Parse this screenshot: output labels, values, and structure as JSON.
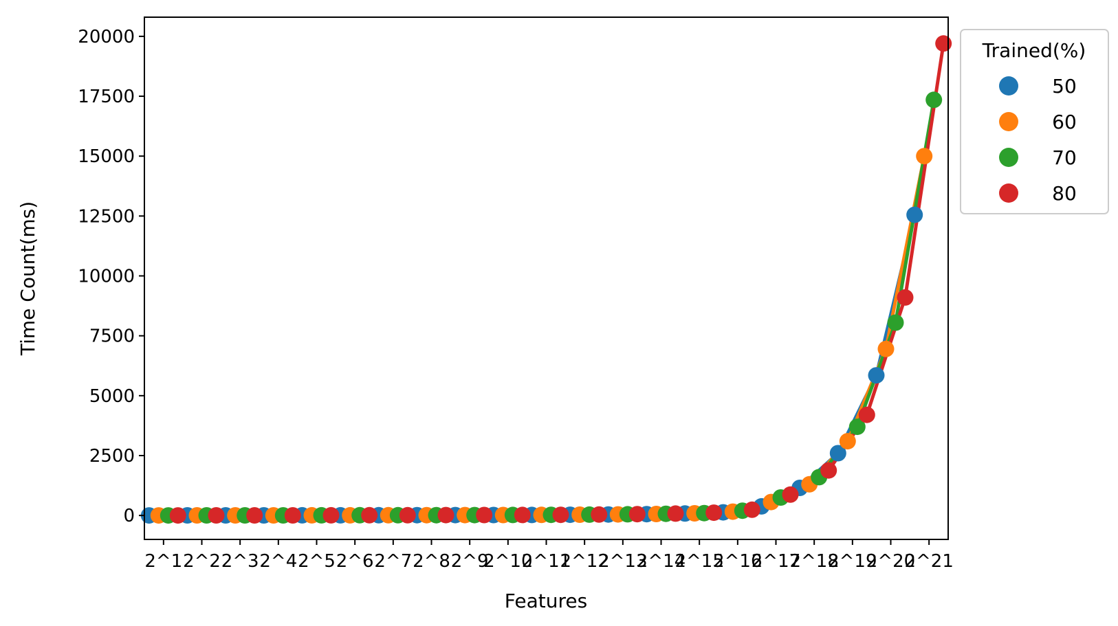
{
  "chart_data": {
    "type": "line",
    "xlabel": "Features",
    "ylabel": "Time Count(ms)",
    "categories": [
      "2^1",
      "2^2",
      "2^3",
      "2^4",
      "2^5",
      "2^6",
      "2^7",
      "2^8",
      "2^9",
      "2^10",
      "2^11",
      "2^12",
      "2^13",
      "2^14",
      "2^15",
      "2^16",
      "2^17",
      "2^18",
      "2^19",
      "2^20",
      "2^21"
    ],
    "ylim": [
      -1000,
      20800
    ],
    "yticks": [
      0,
      2500,
      5000,
      7500,
      10000,
      12500,
      15000,
      17500,
      20000
    ],
    "grid": false,
    "legend": {
      "title": "Trained(%)",
      "position": "outside-top-right"
    },
    "series": [
      {
        "name": "50",
        "color": "#1f77b4",
        "dodge": -1.5,
        "values": [
          2,
          3,
          4,
          5,
          6,
          8,
          10,
          12,
          14,
          18,
          22,
          30,
          40,
          55,
          80,
          130,
          380,
          1150,
          2600,
          5850,
          12550
        ]
      },
      {
        "name": "60",
        "color": "#ff7f0e",
        "dodge": -0.5,
        "values": [
          2,
          3,
          4,
          5,
          6,
          8,
          10,
          12,
          15,
          19,
          24,
          33,
          45,
          62,
          90,
          160,
          560,
          1300,
          3100,
          6950,
          15000
        ]
      },
      {
        "name": "70",
        "color": "#2ca02c",
        "dodge": 0.5,
        "values": [
          2,
          3,
          4,
          5,
          7,
          9,
          11,
          13,
          16,
          20,
          26,
          36,
          50,
          70,
          100,
          200,
          750,
          1600,
          3700,
          8050,
          17350
        ]
      },
      {
        "name": "80",
        "color": "#d62728",
        "dodge": 1.5,
        "values": [
          2,
          3,
          4,
          5,
          7,
          9,
          11,
          14,
          17,
          21,
          28,
          39,
          55,
          78,
          115,
          240,
          870,
          1880,
          4200,
          9100,
          19700
        ]
      }
    ]
  }
}
